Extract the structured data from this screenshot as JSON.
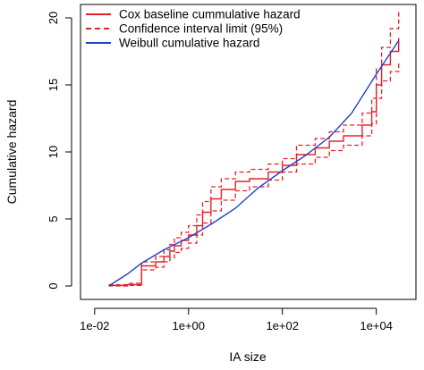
{
  "chart_data": {
    "type": "line",
    "xlabel": "IA size",
    "ylabel": "Cumulative hazard",
    "x_scale": "log10",
    "xlim": [
      0.02,
      50000
    ],
    "ylim": [
      0,
      21
    ],
    "x_ticks": [
      {
        "value": 0.01,
        "label": "1e-02"
      },
      {
        "value": 1,
        "label": "1e+00"
      },
      {
        "value": 100,
        "label": "1e+02"
      },
      {
        "value": 10000,
        "label": "1e+04"
      }
    ],
    "y_ticks": [
      {
        "value": 0,
        "label": "0"
      },
      {
        "value": 5,
        "label": "5"
      },
      {
        "value": 10,
        "label": "10"
      },
      {
        "value": 15,
        "label": "15"
      },
      {
        "value": 20,
        "label": "20"
      }
    ],
    "grid": false,
    "legend_position": "top-left",
    "legend": [
      {
        "label": "Cox baseline cummulative hazard",
        "color": "#e8202a",
        "style": "solid"
      },
      {
        "label": "Confidence interval limit (95%)",
        "color": "#e8202a",
        "style": "dashed"
      },
      {
        "label": "Weibull cumulative hazard",
        "color": "#2040c8",
        "style": "solid"
      }
    ],
    "series": [
      {
        "name": "Cox baseline cummulative hazard",
        "color": "#e8202a",
        "style": "solid",
        "step": true,
        "x": [
          0.02,
          0.05,
          0.1,
          0.1,
          0.2,
          0.3,
          0.4,
          0.5,
          0.7,
          1,
          1.5,
          2,
          3,
          5,
          10,
          20,
          50,
          100,
          200,
          500,
          1000,
          2000,
          5000,
          8000,
          10000,
          13000,
          20000,
          30000
        ],
        "y": [
          0.05,
          0.1,
          0.15,
          1.5,
          1.8,
          2.2,
          2.6,
          3.0,
          3.4,
          3.8,
          4.5,
          5.5,
          6.5,
          7.2,
          7.8,
          8.0,
          8.5,
          9.0,
          9.8,
          10.3,
          10.8,
          11.2,
          12.0,
          13.0,
          15.0,
          16.5,
          17.5,
          18.5
        ]
      },
      {
        "name": "Confidence interval limit (95%)",
        "color": "#e8202a",
        "style": "dashed",
        "step": true,
        "x": [
          0.02,
          0.05,
          0.1,
          0.1,
          0.2,
          0.3,
          0.4,
          0.5,
          0.7,
          1,
          1.5,
          2,
          3,
          5,
          10,
          20,
          50,
          100,
          200,
          500,
          1000,
          2000,
          5000,
          8000,
          10000,
          13000,
          20000,
          30000
        ],
        "y": [
          0.1,
          0.2,
          0.3,
          1.8,
          2.2,
          2.7,
          3.1,
          3.6,
          4.0,
          4.5,
          5.3,
          6.3,
          7.4,
          8.0,
          8.5,
          8.7,
          9.1,
          9.5,
          10.5,
          11.0,
          11.5,
          12.0,
          12.9,
          14.0,
          16.2,
          17.8,
          19.2,
          20.5
        ]
      },
      {
        "name": "Confidence interval limit (95%)",
        "color": "#e8202a",
        "style": "dashed",
        "step": true,
        "x": [
          0.02,
          0.05,
          0.1,
          0.1,
          0.2,
          0.3,
          0.4,
          0.5,
          0.7,
          1,
          1.5,
          2,
          3,
          5,
          10,
          20,
          50,
          100,
          200,
          500,
          1000,
          2000,
          5000,
          8000,
          10000,
          13000,
          20000,
          30000
        ],
        "y": [
          0.0,
          0.05,
          0.05,
          1.2,
          1.4,
          1.8,
          2.1,
          2.5,
          2.8,
          3.2,
          3.8,
          4.7,
          5.6,
          6.4,
          7.1,
          7.4,
          7.9,
          8.5,
          9.1,
          9.6,
          10.1,
          10.5,
          11.2,
          12.1,
          14.0,
          15.3,
          16.0,
          16.6
        ]
      },
      {
        "name": "Weibull cumulative hazard",
        "color": "#2040c8",
        "style": "solid",
        "step": false,
        "x": [
          0.02,
          0.05,
          0.1,
          0.3,
          1,
          3,
          10,
          30,
          100,
          300,
          1000,
          3000,
          10000,
          30000
        ],
        "y": [
          0.0,
          0.9,
          1.7,
          2.7,
          3.6,
          4.6,
          5.8,
          7.3,
          8.6,
          9.7,
          11.1,
          12.9,
          15.8,
          18.3
        ]
      }
    ]
  }
}
